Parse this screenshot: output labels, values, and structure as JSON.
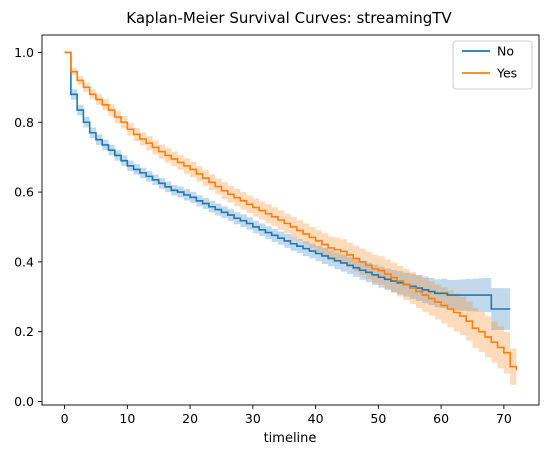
{
  "chart_data": {
    "type": "line",
    "step": true,
    "title": "Kaplan-Meier Survival Curves: streamingTV",
    "xlabel": "timeline",
    "ylabel": "",
    "xlim": [
      -3.6,
      75.6
    ],
    "ylim": [
      -0.01,
      1.05
    ],
    "x_ticks": [
      0,
      10,
      20,
      30,
      40,
      50,
      60,
      70
    ],
    "x_tick_labels": [
      "0",
      "10",
      "20",
      "30",
      "40",
      "50",
      "60",
      "70"
    ],
    "y_ticks": [
      0.0,
      0.2,
      0.4,
      0.6,
      0.8,
      1.0
    ],
    "y_tick_labels": [
      "0.0",
      "0.2",
      "0.4",
      "0.6",
      "0.8",
      "1.0"
    ],
    "grid": false,
    "legend_position": "top-right",
    "series": [
      {
        "name": "No",
        "color": "#1f77b4",
        "x": [
          0,
          1,
          2,
          3,
          4,
          5,
          6,
          7,
          8,
          9,
          10,
          11,
          12,
          13,
          14,
          15,
          16,
          17,
          18,
          19,
          20,
          21,
          22,
          23,
          24,
          25,
          26,
          27,
          28,
          29,
          30,
          31,
          32,
          33,
          34,
          35,
          36,
          37,
          38,
          39,
          40,
          41,
          42,
          43,
          44,
          45,
          46,
          47,
          48,
          49,
          50,
          51,
          52,
          53,
          54,
          55,
          56,
          57,
          58,
          59,
          60,
          61,
          62,
          63,
          64,
          65,
          66,
          67,
          68,
          69,
          70,
          71
        ],
        "y": [
          1.0,
          0.88,
          0.835,
          0.8,
          0.77,
          0.75,
          0.735,
          0.72,
          0.705,
          0.69,
          0.675,
          0.665,
          0.655,
          0.645,
          0.635,
          0.625,
          0.615,
          0.605,
          0.6,
          0.592,
          0.585,
          0.575,
          0.567,
          0.558,
          0.55,
          0.542,
          0.534,
          0.525,
          0.518,
          0.51,
          0.5,
          0.492,
          0.484,
          0.476,
          0.468,
          0.46,
          0.452,
          0.445,
          0.438,
          0.431,
          0.424,
          0.417,
          0.41,
          0.403,
          0.397,
          0.39,
          0.383,
          0.376,
          0.37,
          0.363,
          0.356,
          0.35,
          0.345,
          0.34,
          0.335,
          0.33,
          0.325,
          0.32,
          0.315,
          0.31,
          0.31,
          0.305,
          0.305,
          0.305,
          0.305,
          0.305,
          0.305,
          0.305,
          0.265,
          0.265,
          0.265,
          0.265
        ],
        "ci_lower": [
          1.0,
          0.865,
          0.82,
          0.785,
          0.755,
          0.735,
          0.72,
          0.705,
          0.69,
          0.675,
          0.66,
          0.65,
          0.64,
          0.63,
          0.62,
          0.61,
          0.6,
          0.59,
          0.584,
          0.576,
          0.569,
          0.559,
          0.551,
          0.542,
          0.533,
          0.525,
          0.517,
          0.508,
          0.5,
          0.492,
          0.482,
          0.474,
          0.466,
          0.457,
          0.449,
          0.44,
          0.432,
          0.425,
          0.417,
          0.41,
          0.402,
          0.394,
          0.387,
          0.379,
          0.372,
          0.365,
          0.357,
          0.349,
          0.342,
          0.334,
          0.326,
          0.319,
          0.313,
          0.307,
          0.301,
          0.294,
          0.288,
          0.282,
          0.276,
          0.27,
          0.268,
          0.262,
          0.261,
          0.26,
          0.259,
          0.258,
          0.257,
          0.256,
          0.205,
          0.205,
          0.205,
          0.205
        ],
        "ci_upper": [
          1.0,
          0.895,
          0.85,
          0.815,
          0.785,
          0.765,
          0.75,
          0.735,
          0.72,
          0.705,
          0.69,
          0.68,
          0.67,
          0.66,
          0.65,
          0.64,
          0.63,
          0.62,
          0.616,
          0.608,
          0.601,
          0.591,
          0.583,
          0.574,
          0.567,
          0.559,
          0.551,
          0.542,
          0.536,
          0.528,
          0.518,
          0.51,
          0.502,
          0.495,
          0.487,
          0.48,
          0.472,
          0.465,
          0.459,
          0.452,
          0.446,
          0.44,
          0.433,
          0.427,
          0.422,
          0.415,
          0.409,
          0.403,
          0.398,
          0.392,
          0.386,
          0.381,
          0.377,
          0.373,
          0.369,
          0.366,
          0.362,
          0.358,
          0.354,
          0.35,
          0.352,
          0.348,
          0.349,
          0.35,
          0.351,
          0.352,
          0.353,
          0.354,
          0.325,
          0.325,
          0.325,
          0.325
        ]
      },
      {
        "name": "Yes",
        "color": "#ff7f0e",
        "x": [
          0,
          1,
          2,
          3,
          4,
          5,
          6,
          7,
          8,
          9,
          10,
          11,
          12,
          13,
          14,
          15,
          16,
          17,
          18,
          19,
          20,
          21,
          22,
          23,
          24,
          25,
          26,
          27,
          28,
          29,
          30,
          31,
          32,
          33,
          34,
          35,
          36,
          37,
          38,
          39,
          40,
          41,
          42,
          43,
          44,
          45,
          46,
          47,
          48,
          49,
          50,
          51,
          52,
          53,
          54,
          55,
          56,
          57,
          58,
          59,
          60,
          61,
          62,
          63,
          64,
          65,
          66,
          67,
          68,
          69,
          70,
          71,
          72
        ],
        "y": [
          1.0,
          0.945,
          0.92,
          0.9,
          0.88,
          0.865,
          0.85,
          0.835,
          0.815,
          0.8,
          0.78,
          0.765,
          0.752,
          0.74,
          0.728,
          0.716,
          0.705,
          0.695,
          0.685,
          0.675,
          0.665,
          0.652,
          0.64,
          0.628,
          0.616,
          0.604,
          0.594,
          0.584,
          0.575,
          0.565,
          0.556,
          0.547,
          0.538,
          0.529,
          0.52,
          0.51,
          0.5,
          0.49,
          0.48,
          0.47,
          0.46,
          0.45,
          0.44,
          0.435,
          0.43,
          0.42,
          0.41,
          0.4,
          0.39,
          0.38,
          0.375,
          0.365,
          0.355,
          0.345,
          0.335,
          0.325,
          0.315,
          0.305,
          0.295,
          0.285,
          0.275,
          0.265,
          0.255,
          0.245,
          0.23,
          0.21,
          0.2,
          0.185,
          0.17,
          0.155,
          0.14,
          0.1,
          0.09
        ],
        "ci_lower": [
          1.0,
          0.935,
          0.908,
          0.887,
          0.866,
          0.85,
          0.834,
          0.818,
          0.798,
          0.782,
          0.762,
          0.746,
          0.733,
          0.72,
          0.708,
          0.696,
          0.684,
          0.674,
          0.664,
          0.653,
          0.643,
          0.63,
          0.617,
          0.605,
          0.593,
          0.58,
          0.57,
          0.559,
          0.55,
          0.54,
          0.53,
          0.521,
          0.511,
          0.502,
          0.492,
          0.482,
          0.471,
          0.461,
          0.45,
          0.44,
          0.429,
          0.418,
          0.407,
          0.401,
          0.395,
          0.384,
          0.373,
          0.362,
          0.351,
          0.34,
          0.334,
          0.323,
          0.312,
          0.301,
          0.29,
          0.279,
          0.268,
          0.257,
          0.246,
          0.235,
          0.223,
          0.212,
          0.201,
          0.19,
          0.174,
          0.153,
          0.142,
          0.126,
          0.111,
          0.095,
          0.08,
          0.048,
          0.04
        ],
        "ci_upper": [
          1.0,
          0.955,
          0.932,
          0.913,
          0.894,
          0.88,
          0.866,
          0.852,
          0.832,
          0.818,
          0.798,
          0.784,
          0.771,
          0.76,
          0.748,
          0.736,
          0.726,
          0.716,
          0.706,
          0.697,
          0.687,
          0.674,
          0.663,
          0.651,
          0.639,
          0.628,
          0.618,
          0.609,
          0.6,
          0.59,
          0.582,
          0.573,
          0.565,
          0.556,
          0.548,
          0.538,
          0.529,
          0.519,
          0.51,
          0.5,
          0.491,
          0.482,
          0.473,
          0.469,
          0.465,
          0.456,
          0.447,
          0.438,
          0.429,
          0.42,
          0.416,
          0.407,
          0.398,
          0.389,
          0.38,
          0.371,
          0.362,
          0.353,
          0.344,
          0.335,
          0.327,
          0.318,
          0.309,
          0.3,
          0.286,
          0.267,
          0.258,
          0.244,
          0.229,
          0.215,
          0.2,
          0.152,
          0.14
        ]
      }
    ]
  }
}
